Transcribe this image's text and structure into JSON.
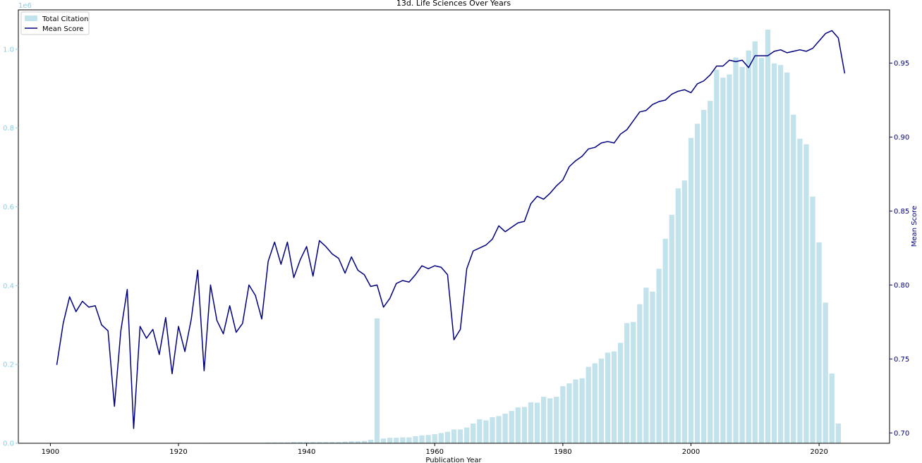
{
  "chart_data": {
    "type": "bar+line",
    "title": "13d. Life Sciences Over Years",
    "xlabel": "Publication Year",
    "y_left_label": "",
    "y_left_multiplier": "1e6",
    "y_right_label": "Mean Score",
    "xlim": [
      1895,
      2031
    ],
    "ylim_left": [
      0,
      1.1
    ],
    "ylim_right": [
      0.693,
      0.986
    ],
    "x_ticks": [
      1900,
      1920,
      1940,
      1960,
      1980,
      2000,
      2020
    ],
    "y_left_ticks": [
      0.0,
      0.2,
      0.4,
      0.6,
      0.8,
      1.0
    ],
    "y_right_ticks": [
      0.7,
      0.75,
      0.8,
      0.85,
      0.9,
      0.95
    ],
    "legend_position": "top-left",
    "grid": false,
    "colors": {
      "bars": "#add8e6",
      "line": "#00007f",
      "left_axis": "#87ceeb",
      "right_axis": "#00007f"
    },
    "series": [
      {
        "name": "Total Citation",
        "kind": "bar",
        "x": [
          1925,
          1926,
          1927,
          1928,
          1929,
          1930,
          1931,
          1932,
          1933,
          1934,
          1935,
          1936,
          1937,
          1938,
          1939,
          1940,
          1941,
          1942,
          1943,
          1944,
          1945,
          1946,
          1947,
          1948,
          1949,
          1950,
          1951,
          1952,
          1953,
          1954,
          1955,
          1956,
          1957,
          1958,
          1959,
          1960,
          1961,
          1962,
          1963,
          1964,
          1965,
          1966,
          1967,
          1968,
          1969,
          1970,
          1971,
          1972,
          1973,
          1974,
          1975,
          1976,
          1977,
          1978,
          1979,
          1980,
          1981,
          1982,
          1983,
          1984,
          1985,
          1986,
          1987,
          1988,
          1989,
          1990,
          1991,
          1992,
          1993,
          1994,
          1995,
          1996,
          1997,
          1998,
          1999,
          2000,
          2001,
          2002,
          2003,
          2004,
          2005,
          2006,
          2007,
          2008,
          2009,
          2010,
          2011,
          2012,
          2013,
          2014,
          2015,
          2016,
          2017,
          2018,
          2019,
          2020,
          2021,
          2022,
          2023
        ],
        "values": [
          0.001,
          0.001,
          0.001,
          0.001,
          0.001,
          0.001,
          0.001,
          0.001,
          0.001,
          0.002,
          0.002,
          0.002,
          0.002,
          0.003,
          0.003,
          0.003,
          0.003,
          0.003,
          0.003,
          0.003,
          0.003,
          0.004,
          0.005,
          0.005,
          0.006,
          0.009,
          0.317,
          0.012,
          0.014,
          0.014,
          0.015,
          0.015,
          0.018,
          0.02,
          0.021,
          0.023,
          0.026,
          0.029,
          0.035,
          0.035,
          0.04,
          0.05,
          0.061,
          0.058,
          0.066,
          0.069,
          0.075,
          0.082,
          0.091,
          0.092,
          0.104,
          0.103,
          0.118,
          0.114,
          0.118,
          0.145,
          0.152,
          0.162,
          0.165,
          0.194,
          0.203,
          0.215,
          0.23,
          0.233,
          0.255,
          0.305,
          0.308,
          0.353,
          0.395,
          0.385,
          0.443,
          0.519,
          0.58,
          0.647,
          0.667,
          0.775,
          0.811,
          0.846,
          0.869,
          0.948,
          0.928,
          0.936,
          0.979,
          0.955,
          0.997,
          1.02,
          0.978,
          1.05,
          0.964,
          0.96,
          0.941,
          0.834,
          0.773,
          0.759,
          0.626,
          0.51,
          0.357,
          0.177,
          0.05
        ]
      },
      {
        "name": "Mean Score",
        "kind": "line",
        "axis": "right",
        "x": [
          1901,
          1902,
          1903,
          1904,
          1905,
          1906,
          1907,
          1908,
          1909,
          1910,
          1911,
          1912,
          1913,
          1914,
          1915,
          1916,
          1917,
          1918,
          1919,
          1920,
          1921,
          1922,
          1923,
          1924,
          1925,
          1926,
          1927,
          1928,
          1929,
          1930,
          1931,
          1932,
          1933,
          1934,
          1935,
          1936,
          1937,
          1938,
          1939,
          1940,
          1941,
          1942,
          1943,
          1944,
          1945,
          1946,
          1947,
          1948,
          1949,
          1950,
          1951,
          1952,
          1953,
          1954,
          1955,
          1956,
          1957,
          1958,
          1959,
          1960,
          1961,
          1962,
          1963,
          1964,
          1965,
          1966,
          1967,
          1968,
          1969,
          1970,
          1971,
          1972,
          1973,
          1974,
          1975,
          1976,
          1977,
          1978,
          1979,
          1980,
          1981,
          1982,
          1983,
          1984,
          1985,
          1986,
          1987,
          1988,
          1989,
          1990,
          1991,
          1992,
          1993,
          1994,
          1995,
          1996,
          1997,
          1998,
          1999,
          2000,
          2001,
          2002,
          2003,
          2004,
          2005,
          2006,
          2007,
          2008,
          2009,
          2010,
          2011,
          2012,
          2013,
          2014,
          2015,
          2016,
          2017,
          2018,
          2019,
          2020,
          2021,
          2022,
          2023,
          2024
        ],
        "values": [
          0.746,
          0.774,
          0.792,
          0.782,
          0.789,
          0.785,
          0.786,
          0.773,
          0.769,
          0.718,
          0.769,
          0.797,
          0.703,
          0.772,
          0.764,
          0.77,
          0.753,
          0.778,
          0.74,
          0.772,
          0.755,
          0.777,
          0.81,
          0.742,
          0.8,
          0.776,
          0.767,
          0.786,
          0.768,
          0.774,
          0.8,
          0.793,
          0.777,
          0.816,
          0.829,
          0.814,
          0.829,
          0.805,
          0.817,
          0.826,
          0.806,
          0.83,
          0.826,
          0.821,
          0.818,
          0.808,
          0.819,
          0.81,
          0.807,
          0.799,
          0.8,
          0.785,
          0.791,
          0.801,
          0.803,
          0.802,
          0.807,
          0.813,
          0.811,
          0.813,
          0.812,
          0.807,
          0.763,
          0.77,
          0.811,
          0.823,
          0.825,
          0.827,
          0.831,
          0.84,
          0.836,
          0.839,
          0.842,
          0.843,
          0.855,
          0.86,
          0.858,
          0.862,
          0.867,
          0.871,
          0.88,
          0.884,
          0.887,
          0.892,
          0.893,
          0.896,
          0.897,
          0.896,
          0.902,
          0.905,
          0.911,
          0.917,
          0.918,
          0.922,
          0.924,
          0.925,
          0.929,
          0.931,
          0.932,
          0.93,
          0.936,
          0.938,
          0.942,
          0.948,
          0.948,
          0.952,
          0.951,
          0.952,
          0.947,
          0.955,
          0.955,
          0.955,
          0.958,
          0.959,
          0.957,
          0.958,
          0.959,
          0.958,
          0.96,
          0.965,
          0.97,
          0.972,
          0.967,
          0.943
        ]
      }
    ]
  }
}
